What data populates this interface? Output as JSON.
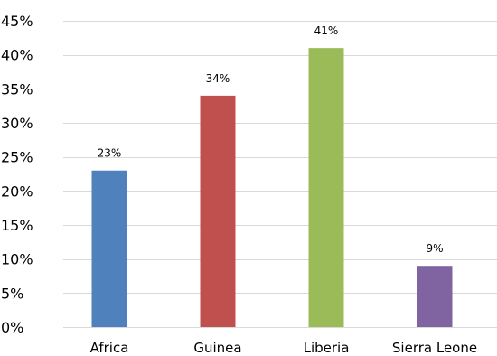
{
  "chart_data": {
    "type": "bar",
    "categories": [
      "Africa",
      "Guinea",
      "Liberia",
      "Sierra Leone"
    ],
    "values": [
      23,
      34,
      41,
      9
    ],
    "data_labels": [
      "23%",
      "34%",
      "41%",
      "9%"
    ],
    "colors": [
      "#4f81bd",
      "#c0504d",
      "#9bbb59",
      "#8064a2"
    ],
    "ylim": [
      0,
      45
    ],
    "yticks": [
      0,
      5,
      10,
      15,
      20,
      25,
      30,
      35,
      40,
      45
    ],
    "ytick_labels": [
      "0%",
      "5%",
      "10%",
      "15%",
      "20%",
      "25%",
      "30%",
      "35%",
      "40%",
      "45%"
    ],
    "gridlines": "horizontal",
    "grid_color": "#d9d9d9",
    "legend": "none",
    "title": "",
    "xlabel": "",
    "ylabel": ""
  }
}
